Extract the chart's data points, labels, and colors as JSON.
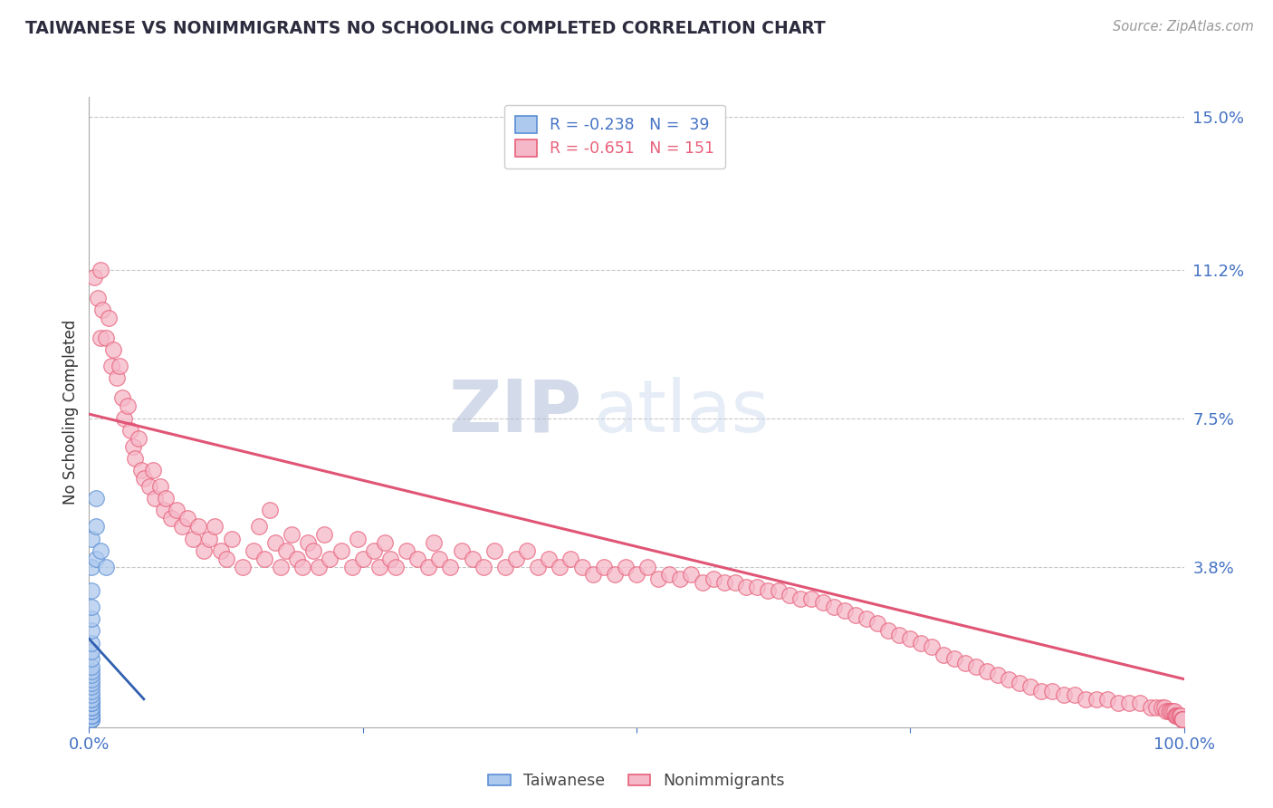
{
  "title": "TAIWANESE VS NONIMMIGRANTS NO SCHOOLING COMPLETED CORRELATION CHART",
  "source": "Source: ZipAtlas.com",
  "ylabel": "No Schooling Completed",
  "xlim": [
    0,
    1.0
  ],
  "ylim": [
    -0.002,
    0.155
  ],
  "yticks": [
    0.038,
    0.075,
    0.112,
    0.15
  ],
  "ytick_labels": [
    "3.8%",
    "7.5%",
    "11.2%",
    "15.0%"
  ],
  "xticks": [
    0.0,
    0.25,
    0.5,
    0.75,
    1.0
  ],
  "xtick_labels": [
    "0.0%",
    "",
    "",
    "",
    "100.0%"
  ],
  "background_color": "#ffffff",
  "grid_color": "#c8c8c8",
  "watermark_zip": "ZIP",
  "watermark_atlas": "atlas",
  "legend_r_taiwanese": "-0.238",
  "legend_n_taiwanese": "39",
  "legend_r_nonimmigrants": "-0.651",
  "legend_n_nonimmigrants": "151",
  "taiwanese_fill": "#aec9ee",
  "taiwanese_edge": "#5b8fd4",
  "nonimmigrant_fill": "#f5b8c8",
  "nonimmigrant_edge": "#e8607a",
  "title_color": "#2c2c3e",
  "axis_label_color": "#333333",
  "tick_label_color": "#4472c4",
  "nonimmigrant_line_color": "#e05575",
  "taiwanese_line_color": "#3060b0",
  "taiwanese_scatter_x": [
    0.002,
    0.002,
    0.002,
    0.002,
    0.002,
    0.002,
    0.002,
    0.002,
    0.002,
    0.002,
    0.002,
    0.002,
    0.002,
    0.002,
    0.002,
    0.002,
    0.002,
    0.002,
    0.002,
    0.002,
    0.002,
    0.002,
    0.002,
    0.002,
    0.002,
    0.002,
    0.002,
    0.002,
    0.002,
    0.002,
    0.002,
    0.002,
    0.002,
    0.002,
    0.006,
    0.006,
    0.006,
    0.01,
    0.015
  ],
  "taiwanese_scatter_y": [
    0.0,
    0.0,
    0.0,
    0.0,
    0.0,
    0.0,
    0.001,
    0.001,
    0.001,
    0.002,
    0.002,
    0.003,
    0.003,
    0.004,
    0.004,
    0.005,
    0.005,
    0.006,
    0.007,
    0.008,
    0.009,
    0.01,
    0.011,
    0.012,
    0.013,
    0.015,
    0.017,
    0.019,
    0.022,
    0.025,
    0.028,
    0.032,
    0.038,
    0.045,
    0.04,
    0.048,
    0.055,
    0.042,
    0.038
  ],
  "nonimmigrant_scatter_x": [
    0.005,
    0.008,
    0.01,
    0.01,
    0.012,
    0.015,
    0.018,
    0.02,
    0.022,
    0.025,
    0.028,
    0.03,
    0.032,
    0.035,
    0.038,
    0.04,
    0.042,
    0.045,
    0.048,
    0.05,
    0.055,
    0.058,
    0.06,
    0.065,
    0.068,
    0.07,
    0.075,
    0.08,
    0.085,
    0.09,
    0.095,
    0.1,
    0.105,
    0.11,
    0.115,
    0.12,
    0.125,
    0.13,
    0.14,
    0.15,
    0.155,
    0.16,
    0.165,
    0.17,
    0.175,
    0.18,
    0.185,
    0.19,
    0.195,
    0.2,
    0.205,
    0.21,
    0.215,
    0.22,
    0.23,
    0.24,
    0.245,
    0.25,
    0.26,
    0.265,
    0.27,
    0.275,
    0.28,
    0.29,
    0.3,
    0.31,
    0.315,
    0.32,
    0.33,
    0.34,
    0.35,
    0.36,
    0.37,
    0.38,
    0.39,
    0.4,
    0.41,
    0.42,
    0.43,
    0.44,
    0.45,
    0.46,
    0.47,
    0.48,
    0.49,
    0.5,
    0.51,
    0.52,
    0.53,
    0.54,
    0.55,
    0.56,
    0.57,
    0.58,
    0.59,
    0.6,
    0.61,
    0.62,
    0.63,
    0.64,
    0.65,
    0.66,
    0.67,
    0.68,
    0.69,
    0.7,
    0.71,
    0.72,
    0.73,
    0.74,
    0.75,
    0.76,
    0.77,
    0.78,
    0.79,
    0.8,
    0.81,
    0.82,
    0.83,
    0.84,
    0.85,
    0.86,
    0.87,
    0.88,
    0.89,
    0.9,
    0.91,
    0.92,
    0.93,
    0.94,
    0.95,
    0.96,
    0.97,
    0.975,
    0.98,
    0.982,
    0.984,
    0.986,
    0.988,
    0.99,
    0.991,
    0.992,
    0.993,
    0.994,
    0.995,
    0.996,
    0.997,
    0.998,
    0.999,
    0.999
  ],
  "nonimmigrant_scatter_y": [
    0.11,
    0.105,
    0.112,
    0.095,
    0.102,
    0.095,
    0.1,
    0.088,
    0.092,
    0.085,
    0.088,
    0.08,
    0.075,
    0.078,
    0.072,
    0.068,
    0.065,
    0.07,
    0.062,
    0.06,
    0.058,
    0.062,
    0.055,
    0.058,
    0.052,
    0.055,
    0.05,
    0.052,
    0.048,
    0.05,
    0.045,
    0.048,
    0.042,
    0.045,
    0.048,
    0.042,
    0.04,
    0.045,
    0.038,
    0.042,
    0.048,
    0.04,
    0.052,
    0.044,
    0.038,
    0.042,
    0.046,
    0.04,
    0.038,
    0.044,
    0.042,
    0.038,
    0.046,
    0.04,
    0.042,
    0.038,
    0.045,
    0.04,
    0.042,
    0.038,
    0.044,
    0.04,
    0.038,
    0.042,
    0.04,
    0.038,
    0.044,
    0.04,
    0.038,
    0.042,
    0.04,
    0.038,
    0.042,
    0.038,
    0.04,
    0.042,
    0.038,
    0.04,
    0.038,
    0.04,
    0.038,
    0.036,
    0.038,
    0.036,
    0.038,
    0.036,
    0.038,
    0.035,
    0.036,
    0.035,
    0.036,
    0.034,
    0.035,
    0.034,
    0.034,
    0.033,
    0.033,
    0.032,
    0.032,
    0.031,
    0.03,
    0.03,
    0.029,
    0.028,
    0.027,
    0.026,
    0.025,
    0.024,
    0.022,
    0.021,
    0.02,
    0.019,
    0.018,
    0.016,
    0.015,
    0.014,
    0.013,
    0.012,
    0.011,
    0.01,
    0.009,
    0.008,
    0.007,
    0.007,
    0.006,
    0.006,
    0.005,
    0.005,
    0.005,
    0.004,
    0.004,
    0.004,
    0.003,
    0.003,
    0.003,
    0.003,
    0.002,
    0.002,
    0.002,
    0.002,
    0.002,
    0.001,
    0.001,
    0.001,
    0.001,
    0.001,
    0.001,
    0.0,
    0.0,
    0.0
  ],
  "nonimmigrant_line_x": [
    0.0,
    1.0
  ],
  "nonimmigrant_line_y": [
    0.076,
    0.01
  ],
  "taiwanese_line_x": [
    0.0,
    0.05
  ],
  "taiwanese_line_y": [
    0.02,
    0.005
  ]
}
